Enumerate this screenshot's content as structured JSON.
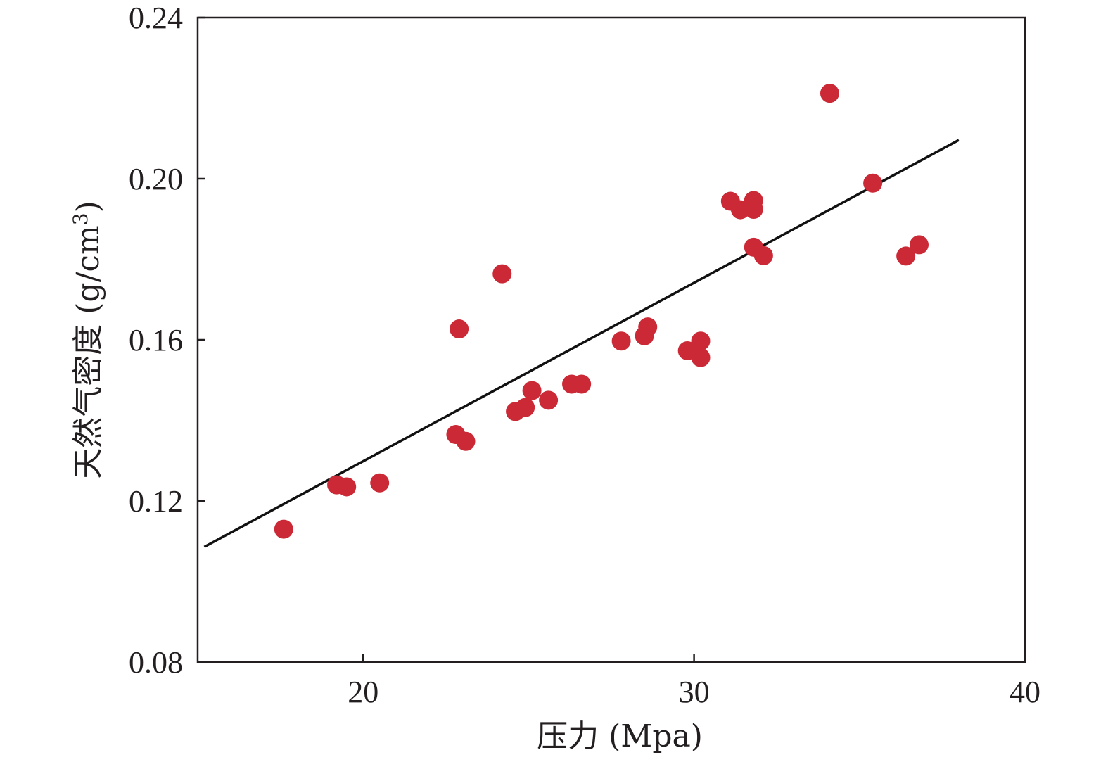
{
  "chart_data": {
    "type": "scatter",
    "xlabel": "压力 (Mpa)",
    "ylabel_main": "天然气密度 (g/cm",
    "ylabel_sup": "3",
    "ylabel_close": ")",
    "xlim": [
      15,
      40
    ],
    "ylim": [
      0.08,
      0.24
    ],
    "xticks": [
      20,
      30,
      40
    ],
    "xtick_labels": [
      "20",
      "30",
      "40"
    ],
    "yticks": [
      0.08,
      0.12,
      0.16,
      0.2,
      0.24
    ],
    "ytick_labels": [
      "0.08",
      "0.12",
      "0.16",
      "0.20",
      "0.24"
    ],
    "grid": false,
    "colors": {
      "points": "#cc2936",
      "line": "#111111",
      "axes": "#231f20"
    },
    "points": [
      {
        "x": 17.6,
        "y": 0.113
      },
      {
        "x": 19.2,
        "y": 0.124
      },
      {
        "x": 19.5,
        "y": 0.1235
      },
      {
        "x": 20.5,
        "y": 0.1245
      },
      {
        "x": 22.8,
        "y": 0.1365
      },
      {
        "x": 23.1,
        "y": 0.1348
      },
      {
        "x": 22.9,
        "y": 0.1627
      },
      {
        "x": 24.2,
        "y": 0.1764
      },
      {
        "x": 24.6,
        "y": 0.1422
      },
      {
        "x": 24.9,
        "y": 0.1432
      },
      {
        "x": 25.1,
        "y": 0.1474
      },
      {
        "x": 25.6,
        "y": 0.145
      },
      {
        "x": 26.3,
        "y": 0.149
      },
      {
        "x": 26.6,
        "y": 0.149
      },
      {
        "x": 27.8,
        "y": 0.1597
      },
      {
        "x": 28.5,
        "y": 0.161
      },
      {
        "x": 28.6,
        "y": 0.1632
      },
      {
        "x": 29.8,
        "y": 0.1573
      },
      {
        "x": 30.2,
        "y": 0.1597
      },
      {
        "x": 30.2,
        "y": 0.1556
      },
      {
        "x": 31.1,
        "y": 0.1944
      },
      {
        "x": 31.4,
        "y": 0.1923
      },
      {
        "x": 31.8,
        "y": 0.1946
      },
      {
        "x": 31.8,
        "y": 0.1924
      },
      {
        "x": 31.8,
        "y": 0.183
      },
      {
        "x": 32.1,
        "y": 0.1809
      },
      {
        "x": 34.1,
        "y": 0.2212
      },
      {
        "x": 35.4,
        "y": 0.1989
      },
      {
        "x": 36.4,
        "y": 0.1808
      },
      {
        "x": 36.8,
        "y": 0.1836
      }
    ],
    "fit_line": {
      "x1": 15.2,
      "y1": 0.1086,
      "x2": 38.0,
      "y2": 0.2096
    }
  }
}
